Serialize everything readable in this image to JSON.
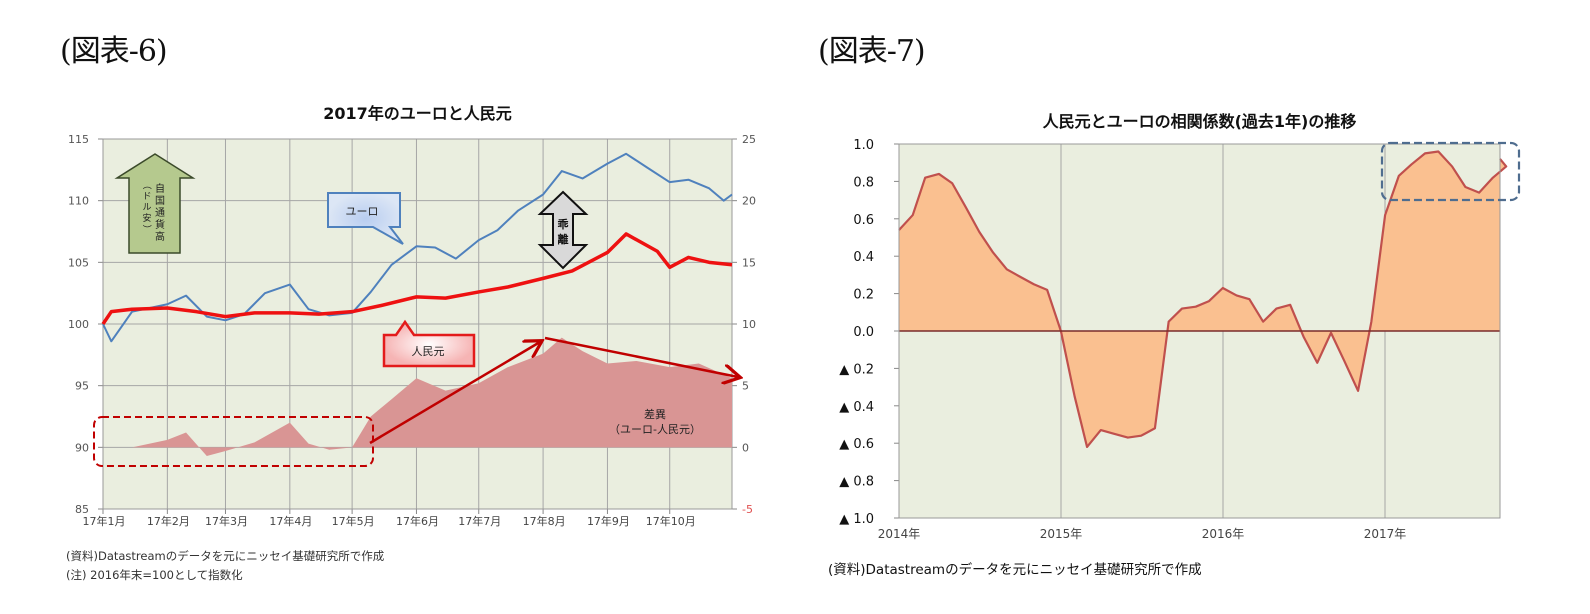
{
  "left_figure": {
    "label": "(図表-6)",
    "title": "2017年のユーロと人民元",
    "notes": [
      "(資料)Datastreamのデータを元にニッセイ基礎研究所で作成",
      "(注) 2016年末=100として指数化"
    ],
    "annotations": {
      "arrow_up_text": "自国通貨高",
      "arrow_up_subtext": "（ドル安）",
      "euro_callout": "ユーロ",
      "yuan_callout": "人民元",
      "divergence_label": "乖離",
      "diff_label_line1": "差異",
      "diff_label_line2": "（ユーロ-人民元）"
    },
    "colors": {
      "plot_bg": "#eaeedf",
      "euro": "#4f81bd",
      "yuan": "#ee1111",
      "diff_area": "#d99594",
      "annotation_arrow": "#c00000",
      "up_arrow_fill": "#b5c98e",
      "grid": "#a6a6a6"
    }
  },
  "right_figure": {
    "label": "(図表-7)",
    "title": "人民元とユーロの相関係数(過去1年)の推移",
    "notes": [
      "(資料)Datastreamのデータを元にニッセイ基礎研究所で作成"
    ],
    "colors": {
      "plot_bg": "#eaeedf",
      "area_fill": "#fac090",
      "line": "#c0504d",
      "zero_line": "#7b2c2c",
      "highlight_box": "#4f6d8f"
    }
  },
  "chart_data": [
    {
      "type": "line",
      "title": "2017年のユーロと人民元",
      "xlabel": "",
      "ylabel": "",
      "x_ticks": [
        "17年1月",
        "17年2月",
        "17年3月",
        "17年4月",
        "17年5月",
        "17年6月",
        "17年7月",
        "17年8月",
        "17年9月",
        "17年10月"
      ],
      "y_left": {
        "range": [
          85,
          115
        ],
        "ticks": [
          "85",
          "90",
          "95",
          "100",
          "105",
          "110",
          "115"
        ]
      },
      "y_right": {
        "range": [
          -5,
          25
        ],
        "ticks": [
          "-5",
          "0",
          "5",
          "10",
          "15",
          "20",
          "25"
        ]
      },
      "grid": true,
      "series": [
        {
          "name": "ユーロ",
          "axis": "left",
          "type": "line",
          "x": [
            "2017-01-01",
            "2017-01-05",
            "2017-01-15",
            "2017-02-01",
            "2017-02-10",
            "2017-02-20",
            "2017-03-01",
            "2017-03-10",
            "2017-03-20",
            "2017-04-01",
            "2017-04-10",
            "2017-04-20",
            "2017-05-01",
            "2017-05-10",
            "2017-05-20",
            "2017-06-01",
            "2017-06-10",
            "2017-06-20",
            "2017-07-01",
            "2017-07-10",
            "2017-07-20",
            "2017-08-01",
            "2017-08-10",
            "2017-08-20",
            "2017-09-01",
            "2017-09-10",
            "2017-09-20",
            "2017-10-01",
            "2017-10-10",
            "2017-10-20",
            "2017-10-27",
            "2017-10-31"
          ],
          "values": [
            100,
            98.6,
            101.0,
            101.6,
            102.3,
            100.6,
            100.3,
            100.8,
            102.5,
            103.2,
            101.2,
            100.7,
            100.9,
            102.6,
            104.8,
            106.3,
            106.2,
            105.3,
            106.8,
            107.6,
            109.2,
            110.5,
            112.4,
            111.8,
            113.0,
            113.8,
            112.7,
            111.5,
            111.7,
            111.0,
            110.0,
            110.5
          ]
        },
        {
          "name": "人民元",
          "axis": "left",
          "type": "line",
          "x": [
            "2017-01-01",
            "2017-01-05",
            "2017-01-15",
            "2017-02-01",
            "2017-02-15",
            "2017-03-01",
            "2017-03-15",
            "2017-04-01",
            "2017-04-15",
            "2017-05-01",
            "2017-05-15",
            "2017-06-01",
            "2017-06-15",
            "2017-07-01",
            "2017-07-15",
            "2017-08-01",
            "2017-08-15",
            "2017-09-01",
            "2017-09-10",
            "2017-09-25",
            "2017-10-01",
            "2017-10-10",
            "2017-10-20",
            "2017-10-31"
          ],
          "values": [
            100,
            101.0,
            101.2,
            101.3,
            101.0,
            100.6,
            100.9,
            100.9,
            100.8,
            101.0,
            101.5,
            102.2,
            102.1,
            102.6,
            103.0,
            103.7,
            104.3,
            105.8,
            107.3,
            105.9,
            104.6,
            105.4,
            105.0,
            104.8
          ]
        },
        {
          "name": "差異（ユーロ-人民元）",
          "axis": "right",
          "type": "area",
          "x": [
            "2017-01-01",
            "2017-01-15",
            "2017-02-01",
            "2017-02-10",
            "2017-02-20",
            "2017-03-01",
            "2017-03-15",
            "2017-04-01",
            "2017-04-10",
            "2017-04-20",
            "2017-05-01",
            "2017-05-10",
            "2017-05-20",
            "2017-06-01",
            "2017-06-15",
            "2017-07-01",
            "2017-07-15",
            "2017-08-01",
            "2017-08-10",
            "2017-08-20",
            "2017-09-01",
            "2017-09-15",
            "2017-10-01",
            "2017-10-15",
            "2017-10-31"
          ],
          "values": [
            0,
            0,
            0.6,
            1.2,
            -0.7,
            -0.3,
            0.4,
            2.0,
            0.3,
            -0.2,
            0.0,
            2.5,
            3.9,
            5.6,
            4.6,
            5.2,
            6.5,
            7.6,
            8.9,
            7.8,
            6.8,
            7.0,
            6.5,
            6.8,
            5.6
          ]
        }
      ],
      "annotations": [
        "自国通貨高（ドル安）",
        "乖離",
        "差異（ユーロ-人民元）"
      ]
    },
    {
      "type": "area",
      "title": "人民元とユーロの相関係数(過去1年)の推移",
      "xlabel": "",
      "ylabel": "",
      "x_ticks": [
        "2014年",
        "2015年",
        "2016年",
        "2017年"
      ],
      "y_ticks": [
        "1.0",
        "0.8",
        "0.6",
        "0.4",
        "0.2",
        "0.0",
        "▲ 0.2",
        "▲ 0.4",
        "▲ 0.6",
        "▲ 0.8",
        "▲ 1.0"
      ],
      "ylim": [
        -1.0,
        1.0
      ],
      "grid": true,
      "series": [
        {
          "name": "相関係数",
          "x": [
            "2014-01",
            "2014-02",
            "2014-03",
            "2014-04",
            "2014-05",
            "2014-06",
            "2014-07",
            "2014-08",
            "2014-09",
            "2014-10",
            "2014-11",
            "2014-12",
            "2015-01",
            "2015-02",
            "2015-03",
            "2015-04",
            "2015-05",
            "2015-06",
            "2015-07",
            "2015-08",
            "2015-09",
            "2015-10",
            "2015-11",
            "2015-12",
            "2016-01",
            "2016-02",
            "2016-03",
            "2016-04",
            "2016-05",
            "2016-06",
            "2016-07",
            "2016-08",
            "2016-09",
            "2016-10",
            "2016-11",
            "2016-12",
            "2017-01",
            "2017-02",
            "2017-03",
            "2017-04",
            "2017-05",
            "2017-06",
            "2017-07",
            "2017-08",
            "2017-09",
            "2017-10",
            "2017-11"
          ],
          "values": [
            0.54,
            0.62,
            0.82,
            0.84,
            0.79,
            0.66,
            0.53,
            0.42,
            0.33,
            0.29,
            0.25,
            0.22,
            0.0,
            -0.35,
            -0.62,
            -0.53,
            -0.55,
            -0.57,
            -0.56,
            -0.52,
            0.05,
            0.12,
            0.13,
            0.16,
            0.23,
            0.19,
            0.17,
            0.05,
            0.12,
            0.14,
            -0.03,
            -0.17,
            -0.01,
            -0.16,
            -0.32,
            0.05,
            0.62,
            0.83,
            0.89,
            0.95,
            0.96,
            0.88,
            0.77,
            0.74,
            0.82,
            0.88,
            0.92
          ]
        }
      ],
      "annotations": [
        "highlight box around 2017 values (0.75–1.0)"
      ]
    }
  ]
}
